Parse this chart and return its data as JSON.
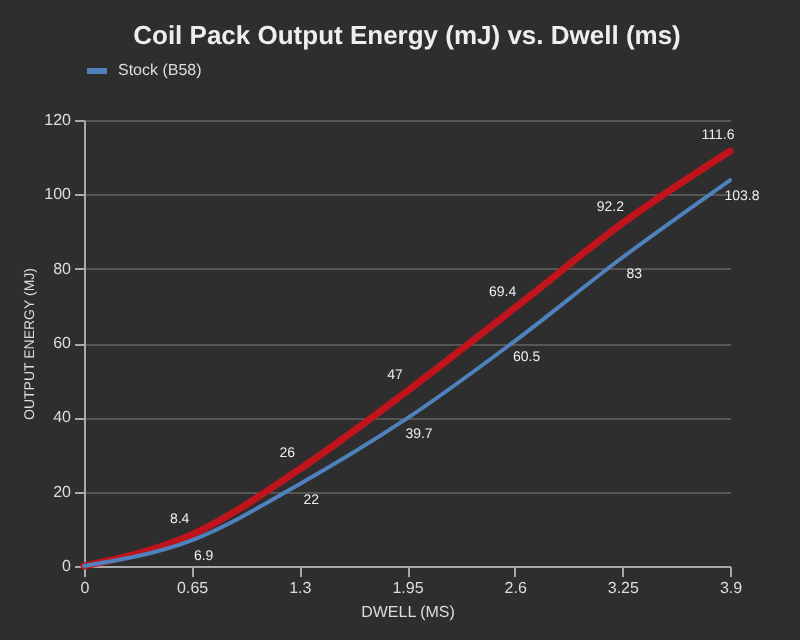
{
  "chart_data": {
    "type": "line",
    "title": "Coil Pack Output Energy (mJ) vs. Dwell (ms)",
    "xlabel": "DWELL (MS)",
    "ylabel": "OUTPUT ENERGY (MJ)",
    "x": [
      0,
      0.65,
      1.3,
      1.95,
      2.6,
      3.25,
      3.9
    ],
    "series": [
      {
        "color": "#c0141c",
        "values": [
          0,
          8.4,
          26,
          47,
          69.4,
          92.2,
          111.6
        ],
        "value_labels": [
          null,
          "8.4",
          "26",
          "47",
          "69.4",
          "92.2",
          "111.6"
        ]
      },
      {
        "name": "Stock (B58)",
        "color": "#4f81bd",
        "values": [
          0,
          6.9,
          22,
          39.7,
          60.5,
          83,
          103.8
        ],
        "value_labels": [
          null,
          "6.9",
          "22",
          "39.7",
          "60.5",
          "83",
          "103.8"
        ]
      }
    ],
    "xlim": [
      0,
      3.9
    ],
    "xticks": [
      0,
      0.65,
      1.3,
      1.95,
      2.6,
      3.25,
      3.9
    ],
    "ylim": [
      0,
      120
    ],
    "yticks": [
      0,
      20,
      40,
      60,
      80,
      100,
      120
    ],
    "grid": "y",
    "legend": "top",
    "marker": "none",
    "line_style": "solid"
  }
}
